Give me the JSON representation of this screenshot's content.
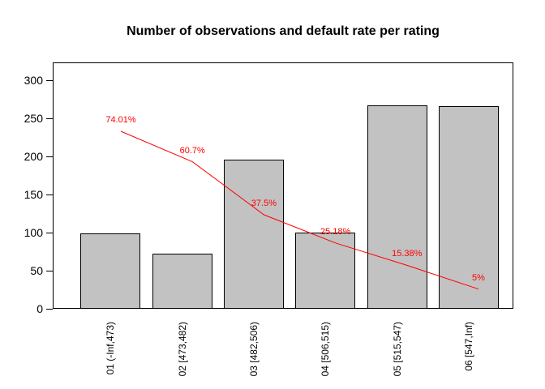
{
  "title": "Number of observations and default rate per rating",
  "chart_data": {
    "type": "bar",
    "title": "Number of observations and default rate per rating",
    "categories": [
      "01 (-Inf,473)",
      "02 [473,482)",
      "03 [482,506)",
      "04 [506,515)",
      "05 [515,547)",
      "06 [547,Inf)"
    ],
    "series": [
      {
        "name": "Number of observations",
        "type": "bar",
        "values": [
          99,
          72,
          196,
          100,
          267,
          266
        ]
      },
      {
        "name": "Default rate",
        "type": "line",
        "values_percent": [
          74.01,
          60.7,
          37.5,
          25.18,
          15.38,
          5
        ],
        "point_labels": [
          "74.01%",
          "60.7%",
          "37.5%",
          "25.18%",
          "15.38%",
          "5%"
        ]
      }
    ],
    "xlabel": "",
    "ylabel": "",
    "yticks": [
      0,
      50,
      100,
      150,
      200,
      250,
      300
    ],
    "ylim": [
      0,
      323
    ],
    "grid": "off",
    "legend": "none",
    "colors": {
      "bar_fill": "#c2c2c2",
      "bar_border": "#000000",
      "line": "#ff0000",
      "line_label": "#ff0000",
      "axis": "#000000",
      "title": "#000000",
      "background": "#ffffff"
    }
  }
}
